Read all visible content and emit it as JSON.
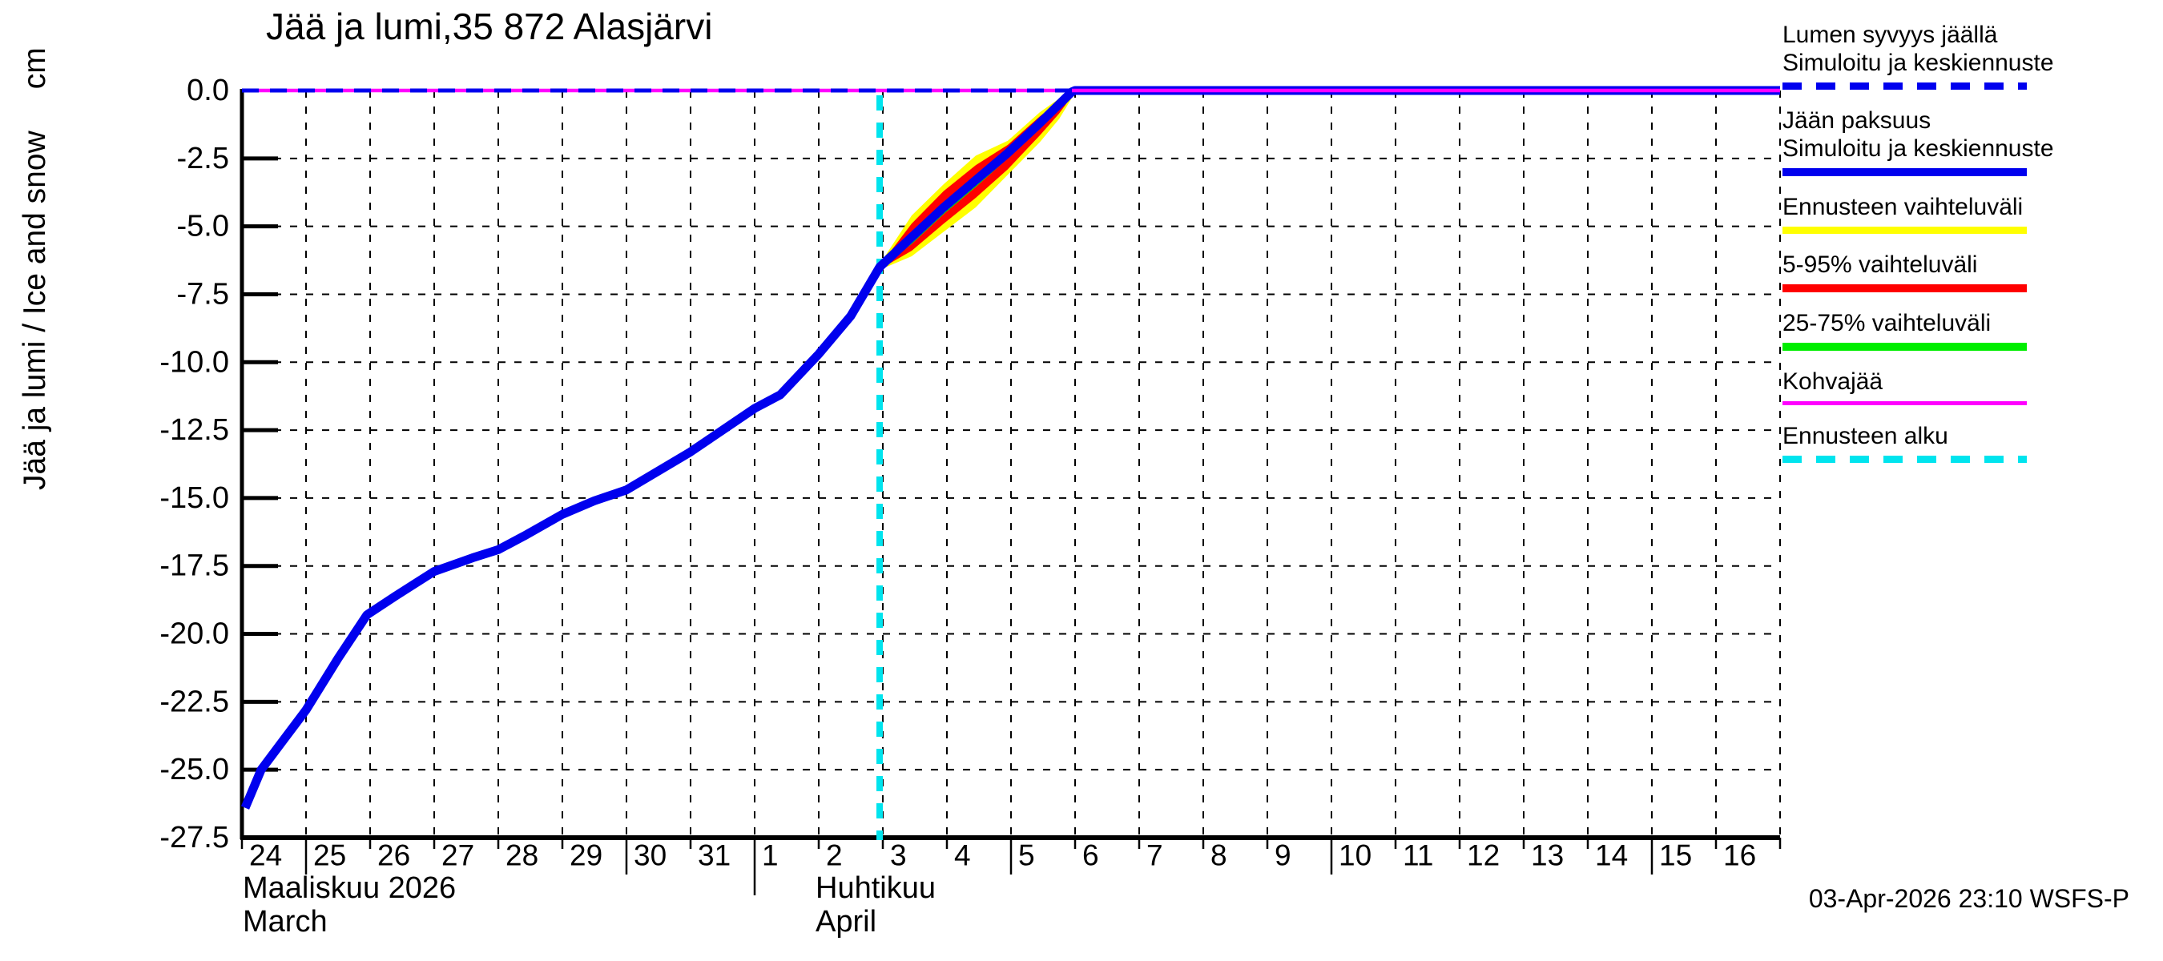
{
  "title": "Jää ja lumi,35 872 Alasjärvi",
  "y_axis_label": "Jää ja lumi / Ice and snow",
  "y_axis_unit": "cm",
  "x_axis": {
    "month_1_line1": "Maaliskuu 2026",
    "month_1_line2": "March",
    "month_2_line1": "Huhtikuu",
    "month_2_line2": "April"
  },
  "footer": {
    "timestamp": "03-Apr-2026 23:10 WSFS-P"
  },
  "colors": {
    "blue": "#0000EE",
    "magenta": "#FF00FF",
    "yellow": "#FFFF00",
    "red": "#FF0000",
    "green": "#00EE00",
    "cyan": "#00E4EE",
    "axis": "#000000"
  },
  "legend": [
    {
      "lines": [
        "Lumen syvyys jäällä",
        "Simuloitu ja keskiennuste"
      ],
      "color": "#0000EE",
      "style": "dashed",
      "height": 9
    },
    {
      "lines": [
        "Jään paksuus",
        "Simuloitu ja keskiennuste"
      ],
      "color": "#0000EE",
      "style": "solid",
      "height": 10
    },
    {
      "lines": [
        "Ennusteen vaihteluväli"
      ],
      "color": "#FFFF00",
      "style": "solid",
      "height": 9
    },
    {
      "lines": [
        "5-95% vaihteluväli"
      ],
      "color": "#FF0000",
      "style": "solid",
      "height": 10
    },
    {
      "lines": [
        "25-75% vaihteluväli"
      ],
      "color": "#00EE00",
      "style": "solid",
      "height": 10
    },
    {
      "lines": [
        "Kohvajää"
      ],
      "color": "#FF00FF",
      "style": "solid",
      "height": 5
    },
    {
      "lines": [
        "Ennusteen alku"
      ],
      "color": "#00E4EE",
      "style": "dashed",
      "height": 9
    }
  ],
  "chart_data": {
    "type": "line",
    "title": "Jää ja lumi,35 872 Alasjärvi",
    "ylabel": "Jää ja lumi / Ice and snow (cm)",
    "ylim": [
      -27.5,
      0
    ],
    "y_tick_step": 2.5,
    "y_tick_labels": [
      "0.0",
      "-2.5",
      "-5.0",
      "-7.5",
      "-10.0",
      "-12.5",
      "-15.0",
      "-17.5",
      "-20.0",
      "-22.5",
      "-25.0",
      "-27.5"
    ],
    "x_day_labels": [
      "24",
      "25",
      "26",
      "27",
      "28",
      "29",
      "30",
      "31",
      "1",
      "2",
      "3",
      "4",
      "5",
      "6",
      "7",
      "8",
      "9",
      "10",
      "11",
      "12",
      "13",
      "14",
      "15",
      "16"
    ],
    "x_axis_note": "Days 24-31 = Maaliskuu/March 2026, days 1-16 = Huhtikuu/April 2026, one tick per day",
    "forecast_start_day_offset": 9.95,
    "series": [
      {
        "name": "Ennusteen vaihteluväli",
        "type": "band",
        "color": "#FFFF00",
        "points": [
          [
            9.95,
            -6.4,
            -6.6
          ],
          [
            10.45,
            -4.6,
            -6.1
          ],
          [
            10.95,
            -3.45,
            -5.2
          ],
          [
            11.45,
            -2.4,
            -4.3
          ],
          [
            11.95,
            -1.85,
            -3.1
          ],
          [
            12.45,
            -0.8,
            -1.9
          ],
          [
            12.75,
            -0.3,
            -1.05
          ],
          [
            13,
            0,
            -0.08
          ]
        ]
      },
      {
        "name": "5-95% vaihteluväli",
        "type": "band",
        "color": "#FF0000",
        "points": [
          [
            9.95,
            -6.45,
            -6.58
          ],
          [
            10.45,
            -4.9,
            -5.9
          ],
          [
            10.95,
            -3.7,
            -4.9
          ],
          [
            11.45,
            -2.75,
            -3.95
          ],
          [
            11.95,
            -2.0,
            -2.9
          ],
          [
            12.45,
            -0.95,
            -1.65
          ],
          [
            12.75,
            -0.4,
            -0.85
          ],
          [
            13,
            0,
            -0.05
          ]
        ]
      },
      {
        "name": "25-75% vaihteluväli",
        "type": "band",
        "color": "#00EE00",
        "points": [
          [
            9.95,
            -6.47,
            -6.55
          ],
          [
            10.45,
            -5.2,
            -5.65
          ],
          [
            10.95,
            -4.1,
            -4.55
          ],
          [
            11.45,
            -3.1,
            -3.55
          ],
          [
            11.95,
            -2.15,
            -2.5
          ],
          [
            12.45,
            -1.05,
            -1.4
          ],
          [
            12.75,
            -0.45,
            -0.7
          ],
          [
            13,
            0,
            -0.03
          ]
        ]
      },
      {
        "name": "Jään paksuus — Simuloitu ja keskiennuste",
        "type": "line",
        "color": "#0000EE",
        "width": 11,
        "points": [
          [
            0.05,
            -26.4
          ],
          [
            0.3,
            -25.0
          ],
          [
            0.65,
            -23.9
          ],
          [
            1,
            -22.8
          ],
          [
            1.5,
            -20.9
          ],
          [
            1.95,
            -19.3
          ],
          [
            2.4,
            -18.6
          ],
          [
            3,
            -17.7
          ],
          [
            3.6,
            -17.2
          ],
          [
            4,
            -16.9
          ],
          [
            4.4,
            -16.4
          ],
          [
            5,
            -15.6
          ],
          [
            5.5,
            -15.1
          ],
          [
            6,
            -14.7
          ],
          [
            6.5,
            -14.0
          ],
          [
            7,
            -13.3
          ],
          [
            7.5,
            -12.5
          ],
          [
            8,
            -11.7
          ],
          [
            8.4,
            -11.2
          ],
          [
            9,
            -9.7
          ],
          [
            9.5,
            -8.3
          ],
          [
            9.95,
            -6.5
          ],
          [
            10.45,
            -5.4
          ],
          [
            10.95,
            -4.3
          ],
          [
            11.45,
            -3.3
          ],
          [
            11.95,
            -2.3
          ],
          [
            12.45,
            -1.2
          ],
          [
            12.95,
            -0.05
          ],
          [
            13,
            0
          ],
          [
            24,
            0
          ]
        ]
      },
      {
        "name": "Kohvajää",
        "type": "line",
        "color": "#FF00FF",
        "width": 4.5,
        "points": [
          [
            0,
            0
          ],
          [
            24,
            0
          ]
        ]
      },
      {
        "name": "Lumen syvyys jäällä — Simuloitu ja keskiennuste",
        "type": "dashed-line",
        "color": "#0000EE",
        "width": 5,
        "points": [
          [
            0,
            0
          ],
          [
            13,
            0
          ]
        ]
      }
    ]
  }
}
